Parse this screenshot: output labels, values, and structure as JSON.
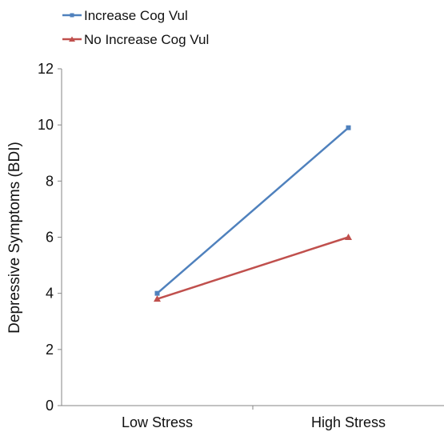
{
  "chart_data": {
    "type": "line",
    "title": "",
    "xlabel": "",
    "ylabel": "Depressive Symptoms (BDI)",
    "categories": [
      "Low Stress",
      "High Stress"
    ],
    "ylim": [
      0,
      12
    ],
    "yticks": [
      0,
      2,
      4,
      6,
      8,
      10,
      12
    ],
    "grid": false,
    "legend_position": "top-left",
    "series": [
      {
        "name": "Increase Cog Vul",
        "values": [
          4.0,
          9.9
        ],
        "color": "#4F81BD",
        "marker": "square"
      },
      {
        "name": "No Increase Cog Vul",
        "values": [
          3.8,
          6.0
        ],
        "color": "#C0504D",
        "marker": "triangle"
      }
    ]
  }
}
